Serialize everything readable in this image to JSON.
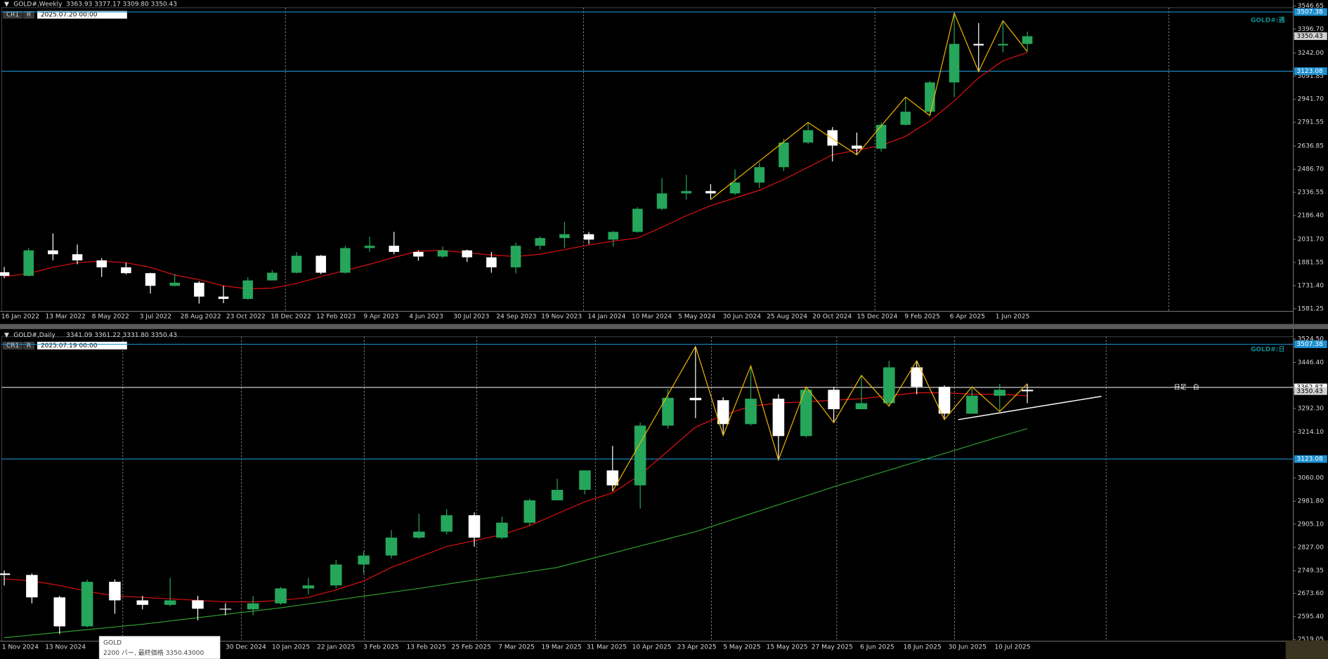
{
  "chart_data": [
    {
      "type": "candlestick",
      "header": "GOLD#,Weekly",
      "ohlc_text": "3363.93 3377.17 3309.80 3350.43",
      "cr": "CR1",
      "r": "R",
      "date_box": "2025.07.20 00:00",
      "watermark": "GOLD#:週",
      "date_labels": [
        "16 Jan 2022",
        "13 Mar 2022",
        "8 May 2022",
        "3 Jul 2022",
        "28 Aug 2022",
        "23 Oct 2022",
        "18 Dec 2022",
        "12 Feb 2023",
        "9 Apr 2023",
        "4 Jun 2023",
        "30 Jul 2023",
        "24 Sep 2023",
        "19 Nov 2023",
        "14 Jan 2024",
        "10 Mar 2024",
        "5 May 2024",
        "30 Jun 2024",
        "25 Aug 2024",
        "20 Oct 2024",
        "15 Dec 2024",
        "9 Feb 2025",
        "6 Apr 2025",
        "1 Jun 2025"
      ],
      "open": [
        1818,
        1795,
        1960,
        1935,
        1895,
        1850,
        1812,
        1730,
        1750,
        1660,
        1645,
        1765,
        1815,
        1925,
        1815,
        1975,
        1990,
        1950,
        1920,
        1960,
        1915,
        1850,
        1990,
        2040,
        2065,
        2030,
        2080,
        2230,
        2330,
        2345,
        2330,
        2400,
        2500,
        2660,
        2740,
        2640,
        2620,
        2775,
        2860,
        3050,
        3300,
        3290,
        3300
      ],
      "high": [
        1853,
        1975,
        2070,
        1998,
        1910,
        1880,
        1815,
        1807,
        1760,
        1730,
        1786,
        1833,
        1949,
        1930,
        1990,
        2048,
        2080,
        1960,
        1985,
        1965,
        1950,
        2010,
        2050,
        2145,
        2080,
        2085,
        2240,
        2430,
        2450,
        2390,
        2485,
        2530,
        2685,
        2790,
        2760,
        2725,
        2790,
        2955,
        3060,
        3500,
        3435,
        3450,
        3380
      ],
      "low": [
        1780,
        1790,
        1895,
        1870,
        1787,
        1805,
        1680,
        1725,
        1615,
        1617,
        1640,
        1765,
        1810,
        1805,
        1810,
        1950,
        1935,
        1893,
        1910,
        1885,
        1815,
        1810,
        1965,
        1975,
        2000,
        1985,
        2075,
        2220,
        2290,
        2290,
        2320,
        2365,
        2475,
        2650,
        2537,
        2580,
        2600,
        2770,
        2835,
        2955,
        3120,
        3245,
        3250
      ],
      "close": [
        1795,
        1960,
        1935,
        1895,
        1850,
        1812,
        1730,
        1750,
        1660,
        1645,
        1765,
        1815,
        1925,
        1815,
        1975,
        1990,
        1950,
        1920,
        1960,
        1915,
        1850,
        1990,
        2040,
        2065,
        2030,
        2080,
        2230,
        2330,
        2345,
        2330,
        2400,
        2500,
        2660,
        2740,
        2640,
        2620,
        2775,
        2860,
        3050,
        3300,
        3290,
        3300,
        3350
      ],
      "up_color": "#26a65b",
      "down_color": "#ffffff",
      "series": [
        {
          "color": "#e01010",
          "values": [
            1790,
            1810,
            1850,
            1880,
            1890,
            1880,
            1850,
            1800,
            1770,
            1730,
            1710,
            1715,
            1745,
            1790,
            1830,
            1870,
            1915,
            1955,
            1960,
            1945,
            1930,
            1920,
            1935,
            1965,
            1995,
            2020,
            2040,
            2110,
            2185,
            2250,
            2300,
            2350,
            2420,
            2500,
            2580,
            2610,
            2640,
            2700,
            2800,
            2930,
            3080,
            3190,
            3245
          ]
        },
        {
          "color": "#f0b400",
          "values": [
            null,
            null,
            null,
            null,
            null,
            null,
            null,
            null,
            null,
            null,
            null,
            null,
            null,
            null,
            null,
            null,
            null,
            null,
            null,
            null,
            null,
            null,
            null,
            null,
            null,
            null,
            null,
            null,
            null,
            2290,
            2415,
            2540,
            2665,
            2790,
            2685,
            2580,
            2768,
            2955,
            2835,
            3500,
            3120,
            3450,
            3250
          ]
        }
      ],
      "hlines": [
        {
          "value": 3507.38,
          "color": "#1e90d0"
        },
        {
          "value": 3123.08,
          "color": "#1e90d0"
        }
      ],
      "last_price": 3350.43,
      "ylim": [
        1570,
        3563
      ],
      "yticks": [
        3546.65,
        {
          "value": 3396.7,
          "label": "3396.70"
        },
        {
          "value": 3242,
          "label": "3242.00"
        },
        3091.85,
        {
          "value": 2941.7,
          "label": "2941.70"
        },
        2791.55,
        2636.85,
        {
          "value": 2486.7,
          "label": "2486.70"
        },
        2336.55,
        {
          "value": 2186.4,
          "label": "2186.40"
        },
        {
          "value": 2031.7,
          "label": "2031.70"
        },
        1881.55,
        {
          "value": 1731.4,
          "label": "1731.40"
        },
        1581.25
      ],
      "grid": false
    },
    {
      "type": "candlestick",
      "header": "GOLD#,Daily",
      "ohlc_text": "3341.09 3361.22 3331.80 3350.43",
      "cr": "CR1",
      "r": "R",
      "date_box": "2025.07.19 00:00",
      "watermark": "GOLD#:日",
      "annotation": "日足　白",
      "date_labels": [
        "1 Nov 2024",
        "13 Nov 2024",
        null,
        null,
        null,
        "30 Dec 2024",
        "10 Jan 2025",
        "22 Jan 2025",
        "3 Feb 2025",
        "13 Feb 2025",
        "25 Feb 2025",
        "7 Mar 2025",
        "19 Mar 2025",
        "31 Mar 2025",
        "10 Apr 2025",
        "23 Apr 2025",
        "5 May 2025",
        "15 May 2025",
        "27 May 2025",
        "6 Jun 2025",
        "18 Jun 2025",
        "30 Jun 2025",
        "10 Jul 2025"
      ],
      "open": [
        2740,
        2735,
        2660,
        2563,
        2712,
        2650,
        2635,
        2650,
        2622,
        2620,
        2640,
        2690,
        2700,
        2770,
        2800,
        2860,
        2880,
        2935,
        2860,
        2910,
        2985,
        3020,
        3085,
        3035,
        3235,
        3328,
        3320,
        3240,
        3325,
        3200,
        3355,
        3290,
        3310,
        3430,
        3365,
        3275,
        3335,
        3355
      ],
      "high": [
        2750,
        2740,
        2665,
        2720,
        2720,
        2665,
        2725,
        2665,
        2640,
        2665,
        2695,
        2725,
        2785,
        2815,
        2885,
        2940,
        2955,
        2945,
        2930,
        2990,
        3057,
        3085,
        3167,
        3245,
        3357,
        3500,
        3330,
        3435,
        3340,
        3365,
        3365,
        3403,
        3452,
        3450,
        3370,
        3365,
        3375,
        3375
      ],
      "low": [
        2700,
        2640,
        2537,
        2560,
        2605,
        2620,
        2630,
        2583,
        2600,
        2600,
        2635,
        2670,
        2690,
        2740,
        2790,
        2855,
        2870,
        2830,
        2855,
        2900,
        2985,
        3005,
        3015,
        2957,
        3225,
        3260,
        3202,
        3235,
        3120,
        3195,
        3245,
        3290,
        3300,
        3340,
        3255,
        3275,
        3282,
        3310
      ],
      "close": [
        2735,
        2660,
        2563,
        2712,
        2650,
        2635,
        2650,
        2622,
        2620,
        2640,
        2690,
        2700,
        2770,
        2800,
        2860,
        2880,
        2935,
        2860,
        2910,
        2985,
        3020,
        3085,
        3035,
        3235,
        3328,
        3320,
        3240,
        3325,
        3200,
        3355,
        3290,
        3310,
        3430,
        3365,
        3275,
        3335,
        3355,
        3350
      ],
      "up_color": "#26a65b",
      "down_color": "#ffffff",
      "series": [
        {
          "color": "#2e9e2e",
          "values": [
            2525,
            2534,
            2543,
            2552,
            2561,
            2570,
            2581,
            2592,
            2603,
            2614,
            2625,
            2638,
            2651,
            2664,
            2677,
            2690,
            2704,
            2718,
            2732,
            2746,
            2760,
            2784,
            2808,
            2832,
            2856,
            2880,
            2910,
            2940,
            2970,
            3000,
            3030,
            3058,
            3086,
            3114,
            3142,
            3170,
            3198,
            3225
          ]
        },
        {
          "color": "#e01010",
          "values": [
            2722,
            2715,
            2700,
            2680,
            2665,
            2660,
            2655,
            2650,
            2645,
            2645,
            2650,
            2660,
            2685,
            2715,
            2760,
            2795,
            2830,
            2850,
            2870,
            2900,
            2940,
            2980,
            3010,
            3070,
            3150,
            3230,
            3270,
            3300,
            3310,
            3315,
            3320,
            3325,
            3335,
            3345,
            3345,
            3340,
            3340,
            3335
          ]
        },
        {
          "color": "#f0b400",
          "values": [
            null,
            null,
            null,
            null,
            null,
            null,
            null,
            null,
            null,
            null,
            null,
            null,
            null,
            null,
            null,
            null,
            null,
            null,
            null,
            null,
            null,
            null,
            3015,
            3177,
            3338,
            3500,
            3202,
            3435,
            3120,
            3365,
            3245,
            3403,
            3300,
            3452,
            3255,
            3365,
            3282,
            3375
          ]
        }
      ],
      "trendline": {
        "color": "#ffffff",
        "values": [
          3255,
          3333
        ]
      },
      "hlines": [
        {
          "value": 3507.38,
          "color": "#1e90d0"
        },
        {
          "value": 3362.87,
          "color": "#ffffff"
        },
        {
          "value": 3123.08,
          "color": "#1e90d0"
        }
      ],
      "last_price": 3350.43,
      "ylim": [
        2516,
        3527
      ],
      "yticks": [
        {
          "value": 3524.5,
          "label": "3524.50"
        },
        {
          "value": 3446.4,
          "label": "3446.40"
        },
        {
          "value": 3292.3,
          "label": "3292.30"
        },
        {
          "value": 3214.1,
          "label": "3214.10"
        },
        {
          "value": 3060,
          "label": "3060.00"
        },
        {
          "value": 2981.8,
          "label": "2981.80"
        },
        {
          "value": 2905.1,
          "label": "2905.10"
        },
        {
          "value": 2827,
          "label": "2827.00"
        },
        2749.35,
        {
          "value": 2673.6,
          "label": "2673.60"
        },
        {
          "value": 2595.4,
          "label": "2595.40"
        },
        2519.05
      ],
      "grid": false
    }
  ],
  "tooltip": {
    "title": "GOLD",
    "text": "2200 バー, 最終価格 3350.43000"
  }
}
